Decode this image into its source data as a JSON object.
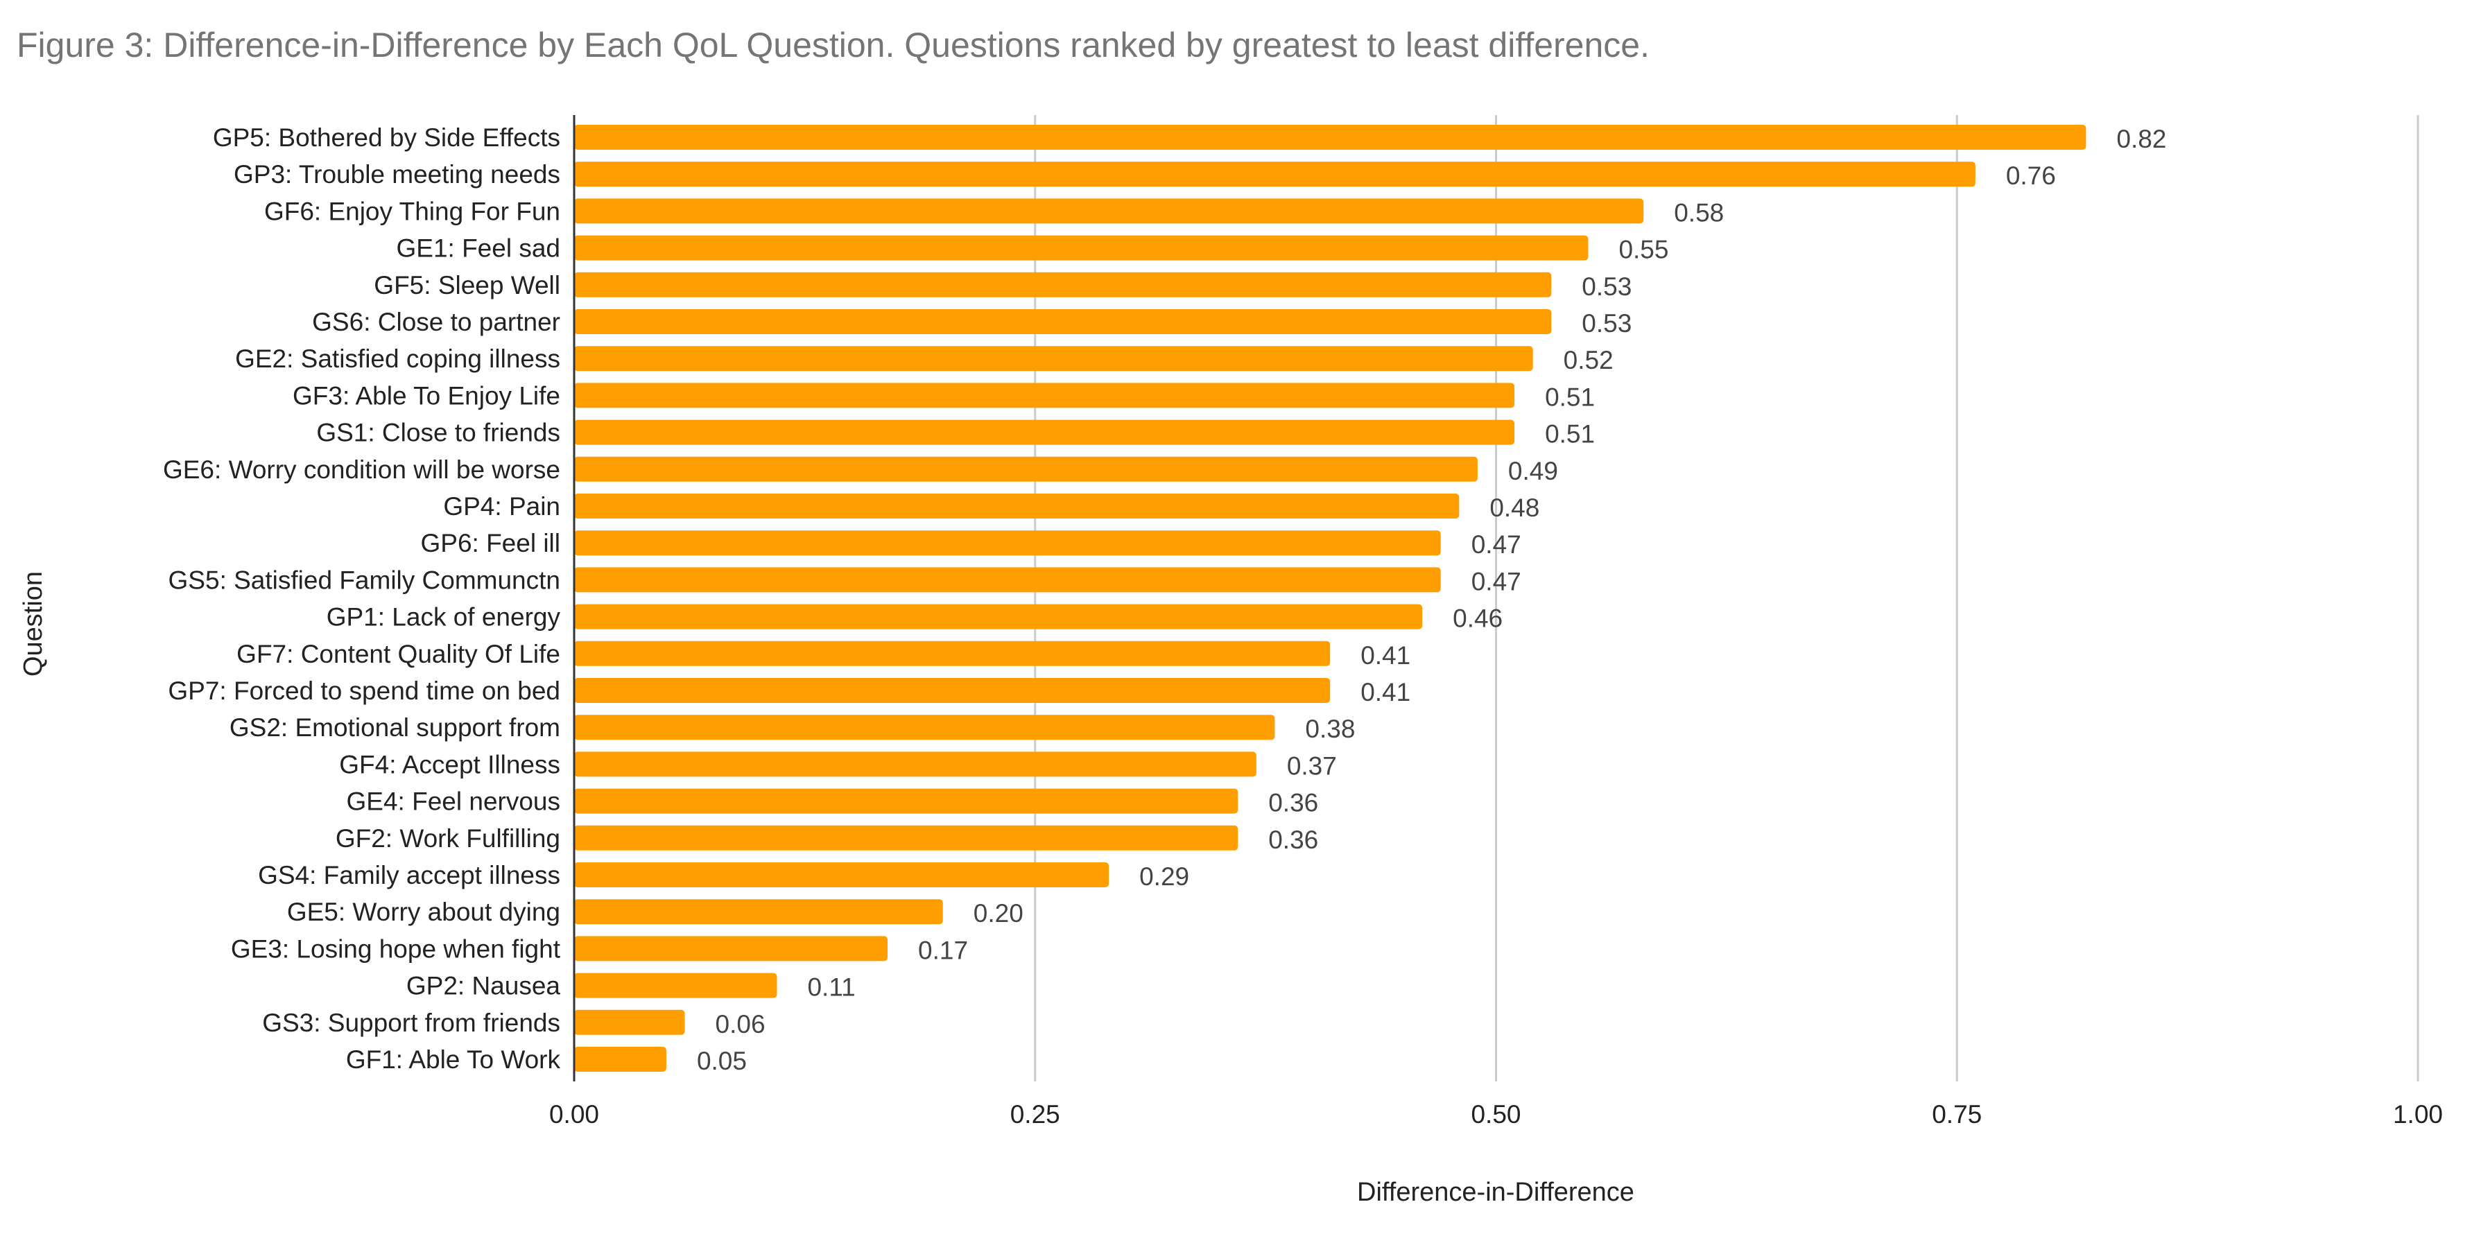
{
  "chart_data": {
    "type": "bar",
    "orientation": "horizontal",
    "title": "Figure 3: Difference-in-Difference by Each QoL Question. Questions ranked by greatest to least difference.",
    "xlabel": "Difference-in-Difference",
    "ylabel": "Question",
    "xlim": [
      0,
      1
    ],
    "xticks": [
      "0.00",
      "0.25",
      "0.50",
      "0.75",
      "1.00"
    ],
    "grid": "vertical",
    "bar_color": "#ff9e01",
    "categories": [
      "GP5: Bothered by Side Effects",
      "GP3: Trouble meeting needs",
      "GF6: Enjoy Thing For Fun",
      "GE1: Feel sad",
      "GF5: Sleep Well",
      "GS6: Close to partner",
      "GE2: Satisfied coping illness",
      "GF3: Able To Enjoy Life",
      "GS1: Close to friends",
      "GE6: Worry condition will be worse",
      "GP4: Pain",
      "GP6: Feel ill",
      "GS5: Satisfied Family Communctn",
      "GP1: Lack of energy",
      "GF7: Content Quality Of Life",
      "GP7: Forced to spend time on bed",
      "GS2: Emotional support from",
      "GF4: Accept Illness",
      "GE4: Feel nervous",
      "GF2: Work Fulfilling",
      "GS4: Family accept illness",
      "GE5: Worry about dying",
      "GE3: Losing hope when fight",
      "GP2: Nausea",
      "GS3: Support from friends",
      "GF1: Able To Work"
    ],
    "values": [
      0.82,
      0.76,
      0.58,
      0.55,
      0.53,
      0.53,
      0.52,
      0.51,
      0.51,
      0.49,
      0.48,
      0.47,
      0.47,
      0.46,
      0.41,
      0.41,
      0.38,
      0.37,
      0.36,
      0.36,
      0.29,
      0.2,
      0.17,
      0.11,
      0.06,
      0.05
    ],
    "value_labels": [
      "0.82",
      "0.76",
      "0.58",
      "0.55",
      "0.53",
      "0.53",
      "0.52",
      "0.51",
      "0.51",
      "0.49",
      "0.48",
      "0.47",
      "0.47",
      "0.46",
      "0.41",
      "0.41",
      "0.38",
      "0.37",
      "0.36",
      "0.36",
      "0.29",
      "0.20",
      "0.17",
      "0.11",
      "0.06",
      "0.05"
    ]
  }
}
